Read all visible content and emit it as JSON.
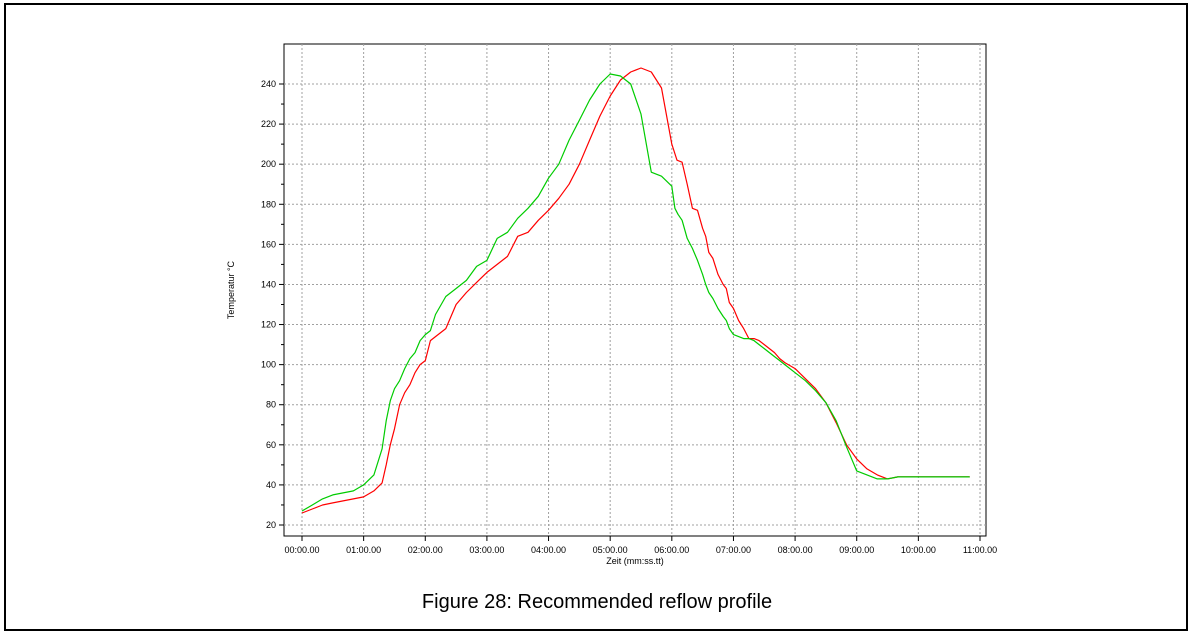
{
  "figure": {
    "caption": "Figure 28: Recommended reflow profile"
  },
  "chart_data": {
    "type": "line",
    "xlabel": "Zeit (mm:ss.tt)",
    "ylabel": "Temperatur °C",
    "xlim": [
      0,
      660
    ],
    "ylim": [
      18,
      252
    ],
    "grid": true,
    "x_ticks": [
      {
        "v": 0,
        "label": "00:00.00"
      },
      {
        "v": 60,
        "label": "01:00.00"
      },
      {
        "v": 120,
        "label": "02:00.00"
      },
      {
        "v": 180,
        "label": "03:00.00"
      },
      {
        "v": 240,
        "label": "04:00.00"
      },
      {
        "v": 300,
        "label": "05:00.00"
      },
      {
        "v": 360,
        "label": "06:00.00"
      },
      {
        "v": 420,
        "label": "07:00.00"
      },
      {
        "v": 480,
        "label": "08:00.00"
      },
      {
        "v": 540,
        "label": "09:00.00"
      },
      {
        "v": 600,
        "label": "10:00.00"
      },
      {
        "v": 660,
        "label": "11:00.00"
      }
    ],
    "y_ticks": [
      20,
      40,
      60,
      80,
      100,
      120,
      140,
      160,
      180,
      200,
      220,
      240
    ],
    "series": [
      {
        "color": "#ff0000",
        "x": [
          0,
          10,
          20,
          30,
          40,
          50,
          60,
          70,
          78,
          82,
          86,
          90,
          95,
          100,
          105,
          110,
          115,
          120,
          125,
          130,
          140,
          150,
          160,
          170,
          180,
          190,
          200,
          210,
          220,
          230,
          240,
          250,
          260,
          270,
          280,
          290,
          300,
          310,
          320,
          330,
          340,
          350,
          360,
          365,
          370,
          375,
          380,
          385,
          390,
          393,
          396,
          400,
          405,
          410,
          413,
          416,
          420,
          425,
          430,
          435,
          440,
          445,
          450,
          455,
          460,
          465,
          470,
          480,
          490,
          500,
          510,
          520,
          530,
          540,
          550,
          560,
          570,
          580,
          590,
          600,
          605,
          610,
          620,
          630,
          640,
          650
        ],
        "y": [
          26,
          28,
          30,
          31,
          32,
          33,
          34,
          37,
          41,
          50,
          60,
          68,
          80,
          86,
          90,
          96,
          100,
          102,
          112,
          114,
          118,
          130,
          136,
          141,
          146,
          150,
          154,
          164,
          166,
          172,
          177,
          183,
          190,
          200,
          212,
          224,
          234,
          242,
          246,
          248,
          246,
          238,
          210,
          202,
          201,
          190,
          178,
          177,
          168,
          164,
          156,
          153,
          145,
          140,
          138,
          131,
          128,
          122,
          118,
          113,
          113,
          112,
          110,
          108,
          106,
          103,
          101,
          98,
          93,
          88,
          81,
          71,
          60,
          53,
          48,
          45,
          43,
          44,
          44,
          44,
          44,
          44,
          44,
          44,
          44,
          44
        ]
      },
      {
        "color": "#00cc00",
        "x": [
          0,
          10,
          20,
          30,
          40,
          50,
          60,
          70,
          78,
          82,
          86,
          90,
          95,
          100,
          105,
          110,
          115,
          120,
          125,
          130,
          140,
          150,
          160,
          170,
          180,
          190,
          200,
          210,
          220,
          230,
          240,
          250,
          260,
          270,
          280,
          290,
          300,
          310,
          320,
          330,
          340,
          350,
          360,
          363,
          366,
          370,
          375,
          380,
          385,
          390,
          393,
          396,
          400,
          405,
          410,
          413,
          416,
          420,
          425,
          430,
          435,
          440,
          445,
          450,
          455,
          460,
          465,
          470,
          480,
          490,
          500,
          510,
          520,
          530,
          540,
          550,
          560,
          570,
          580,
          590,
          600,
          605,
          610,
          620,
          630,
          640,
          650
        ],
        "y": [
          27,
          30,
          33,
          35,
          36,
          37,
          40,
          45,
          58,
          72,
          82,
          88,
          92,
          98,
          103,
          106,
          112,
          115,
          117,
          125,
          134,
          138,
          142,
          149,
          152,
          163,
          166,
          173,
          178,
          184,
          193,
          200,
          212,
          222,
          232,
          240,
          245,
          244,
          240,
          225,
          196,
          194,
          189,
          178,
          175,
          172,
          163,
          158,
          152,
          145,
          140,
          136,
          133,
          128,
          124,
          122,
          118,
          115,
          114,
          113,
          113,
          112,
          110,
          108,
          106,
          104,
          102,
          100,
          96,
          92,
          87,
          81,
          72,
          59,
          47,
          45,
          43,
          43,
          44,
          44,
          44,
          44,
          44,
          44,
          44,
          44,
          44
        ]
      }
    ]
  }
}
